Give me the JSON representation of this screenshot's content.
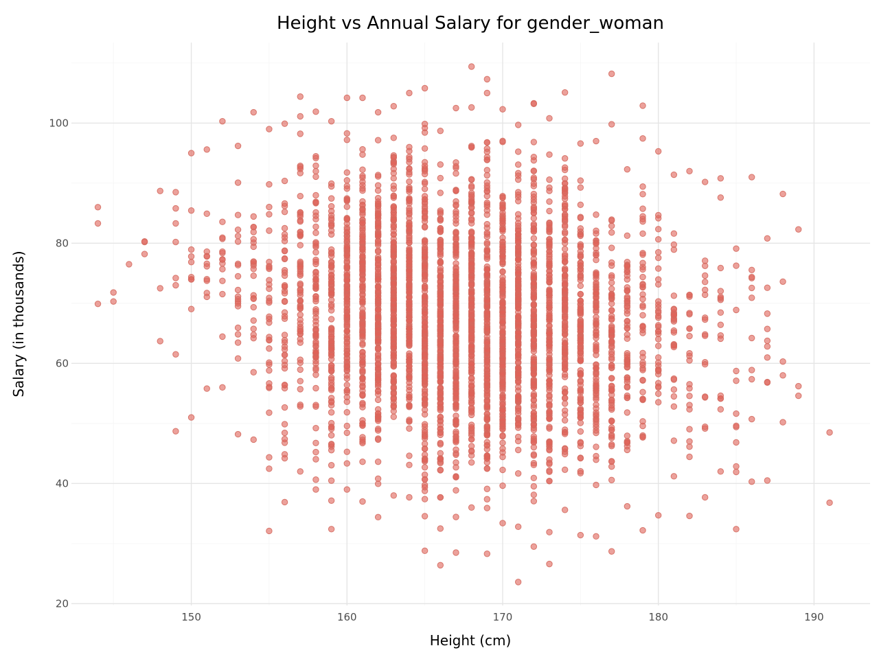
{
  "chart_data": {
    "type": "scatter",
    "title": "Height vs Annual Salary for gender_woman",
    "xlabel": "Height (cm)",
    "ylabel": "Salary (in thousands)",
    "xlim": [
      142.3,
      193.6
    ],
    "ylim": [
      19.7,
      113.4
    ],
    "x_ticks": [
      150,
      160,
      170,
      180,
      190
    ],
    "y_ticks": [
      20,
      40,
      60,
      80,
      100
    ],
    "grid": true,
    "legend": "none",
    "point_color": "#e06358",
    "point_edge_color": "#d46a5f",
    "point_opacity": 0.6,
    "series": [
      {
        "x": [
          144,
          144,
          144,
          145,
          145,
          146,
          147,
          147,
          147,
          148,
          148,
          148,
          149,
          149,
          149,
          149,
          149,
          149,
          149,
          149,
          191,
          191,
          189,
          189,
          189,
          188,
          188,
          188,
          188,
          188,
          166,
          168,
          171,
          173,
          169,
          172,
          177
        ],
        "y": [
          86,
          83.3,
          69.9,
          71.8,
          70.3,
          76.5,
          80.2,
          78.2,
          80.3,
          88.7,
          72.5,
          63.7,
          88.5,
          85.8,
          83.3,
          80.2,
          74.2,
          73,
          61.5,
          48.7,
          48.5,
          36.8,
          82.3,
          56.2,
          54.6,
          88.2,
          73.6,
          60.3,
          58,
          50.2,
          26.4,
          109.4,
          23.6,
          26.6,
          107.3,
          103.3,
          108.2
        ]
      }
    ],
    "bands": [
      {
        "x": 150,
        "y_min": 51,
        "y_max": 95,
        "density": 8
      },
      {
        "x": 151,
        "y_min": 55.8,
        "y_max": 95.6,
        "density": 10
      },
      {
        "x": 152,
        "y_min": 56,
        "y_max": 100.3,
        "density": 12
      },
      {
        "x": 153,
        "y_min": 48.2,
        "y_max": 96.2,
        "density": 18
      },
      {
        "x": 154,
        "y_min": 47.3,
        "y_max": 101.8,
        "density": 22
      },
      {
        "x": 155,
        "y_min": 32.1,
        "y_max": 99,
        "density": 30
      },
      {
        "x": 156,
        "y_min": 36.9,
        "y_max": 99.9,
        "density": 45
      },
      {
        "x": 157,
        "y_min": 42,
        "y_max": 104.4,
        "density": 60
      },
      {
        "x": 158,
        "y_min": 39,
        "y_max": 101.9,
        "density": 80
      },
      {
        "x": 159,
        "y_min": 32.4,
        "y_max": 100.3,
        "density": 100
      },
      {
        "x": 160,
        "y_min": 39,
        "y_max": 104.2,
        "density": 130
      },
      {
        "x": 161,
        "y_min": 37,
        "y_max": 104.2,
        "density": 150
      },
      {
        "x": 162,
        "y_min": 34.4,
        "y_max": 101.8,
        "density": 170
      },
      {
        "x": 163,
        "y_min": 38,
        "y_max": 102.8,
        "density": 180
      },
      {
        "x": 164,
        "y_min": 37.7,
        "y_max": 105,
        "density": 190
      },
      {
        "x": 165,
        "y_min": 28.8,
        "y_max": 105.8,
        "density": 200
      },
      {
        "x": 166,
        "y_min": 32.5,
        "y_max": 98.7,
        "density": 200
      },
      {
        "x": 167,
        "y_min": 28.5,
        "y_max": 102.5,
        "density": 200
      },
      {
        "x": 168,
        "y_min": 36,
        "y_max": 102.6,
        "density": 200
      },
      {
        "x": 169,
        "y_min": 28.3,
        "y_max": 105,
        "density": 200
      },
      {
        "x": 170,
        "y_min": 33.4,
        "y_max": 102.3,
        "density": 200
      },
      {
        "x": 171,
        "y_min": 32.8,
        "y_max": 99.7,
        "density": 190
      },
      {
        "x": 172,
        "y_min": 29.5,
        "y_max": 103.2,
        "density": 180
      },
      {
        "x": 173,
        "y_min": 31.9,
        "y_max": 100.8,
        "density": 160
      },
      {
        "x": 174,
        "y_min": 35.6,
        "y_max": 105.1,
        "density": 140
      },
      {
        "x": 175,
        "y_min": 31.4,
        "y_max": 96.6,
        "density": 120
      },
      {
        "x": 176,
        "y_min": 31.2,
        "y_max": 97,
        "density": 100
      },
      {
        "x": 177,
        "y_min": 28.7,
        "y_max": 99.8,
        "density": 80
      },
      {
        "x": 178,
        "y_min": 36.2,
        "y_max": 92.3,
        "density": 60
      },
      {
        "x": 179,
        "y_min": 32.2,
        "y_max": 102.9,
        "density": 45
      },
      {
        "x": 180,
        "y_min": 34.7,
        "y_max": 95.3,
        "density": 35
      },
      {
        "x": 181,
        "y_min": 41.2,
        "y_max": 91.4,
        "density": 25
      },
      {
        "x": 182,
        "y_min": 34.6,
        "y_max": 92,
        "density": 20
      },
      {
        "x": 183,
        "y_min": 37.7,
        "y_max": 90.2,
        "density": 16
      },
      {
        "x": 184,
        "y_min": 42,
        "y_max": 90.8,
        "density": 14
      },
      {
        "x": 185,
        "y_min": 32.4,
        "y_max": 79.1,
        "density": 10
      },
      {
        "x": 186,
        "y_min": 40.3,
        "y_max": 91,
        "density": 9
      },
      {
        "x": 187,
        "y_min": 40.5,
        "y_max": 80.8,
        "density": 8
      }
    ]
  }
}
